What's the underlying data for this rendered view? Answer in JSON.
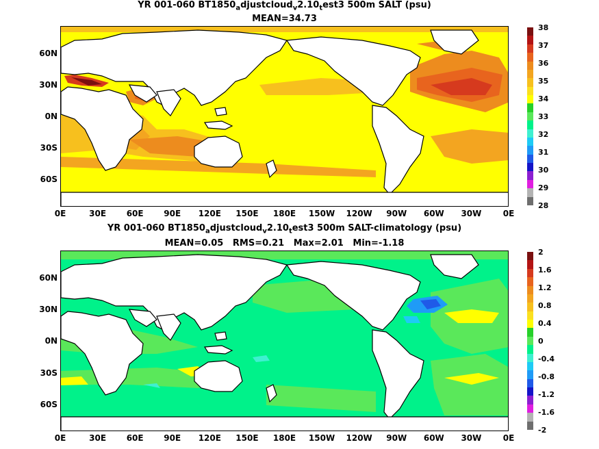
{
  "panels": [
    {
      "title_parts": [
        "YR 001-060 BT1850",
        "a",
        "djustcloud",
        "v",
        "2.10",
        "t",
        "est3 500m SALT (psu)"
      ],
      "stats": "MEAN=34.73",
      "x_ticks": [
        "0E",
        "30E",
        "60E",
        "90E",
        "120E",
        "150E",
        "180E",
        "150W",
        "120W",
        "90W",
        "60W",
        "30W",
        "0E"
      ],
      "y_ticks": [
        "60N",
        "30N",
        "0N",
        "30S",
        "60S"
      ],
      "colorbar": {
        "labels": [
          "38",
          "37",
          "36",
          "35",
          "34",
          "33",
          "32",
          "31",
          "30",
          "29",
          "28"
        ],
        "colors": [
          "#7a1010",
          "#b31414",
          "#d63a1e",
          "#e8641e",
          "#ed8c1e",
          "#f3a520",
          "#f7c01e",
          "#fbe020",
          "#ffff00",
          "#27d12a",
          "#5ae85a",
          "#00f28a",
          "#3ff0d0",
          "#1ecbf5",
          "#1f9bf7",
          "#1f5ae8",
          "#1414c8",
          "#8c1fd1",
          "#e01ee0",
          "#b3b3b3",
          "#6e6e6e"
        ],
        "ocean_base": "#ffff00",
        "land": "#ffffff"
      }
    },
    {
      "title_parts": [
        "YR 001-060 BT1850",
        "a",
        "djustcloud",
        "v",
        "2.10",
        "t",
        "est3 500m SALT-climatology (psu)"
      ],
      "stats": "MEAN=0.05   RMS=0.21   Max=2.01   Min=-1.18",
      "x_ticks": [
        "0E",
        "30E",
        "60E",
        "90E",
        "120E",
        "150E",
        "180E",
        "150W",
        "120W",
        "90W",
        "60W",
        "30W",
        "0E"
      ],
      "y_ticks": [
        "60N",
        "30N",
        "0N",
        "30S",
        "60S"
      ],
      "colorbar": {
        "labels": [
          "2",
          "1.6",
          "1.2",
          "0.8",
          "0.4",
          "0",
          "-0.4",
          "-0.8",
          "-1.2",
          "-1.6",
          "-2"
        ],
        "colors": [
          "#7a1010",
          "#b31414",
          "#d63a1e",
          "#e8641e",
          "#ed8c1e",
          "#f3a520",
          "#f7c01e",
          "#fbe020",
          "#ffff00",
          "#27d12a",
          "#5ae85a",
          "#00f28a",
          "#3ff0d0",
          "#1ecbf5",
          "#1f9bf7",
          "#1f5ae8",
          "#1414c8",
          "#8c1fd1",
          "#e01ee0",
          "#b3b3b3",
          "#6e6e6e"
        ],
        "ocean_base": "#00f28a",
        "land": "#ffffff"
      }
    }
  ]
}
